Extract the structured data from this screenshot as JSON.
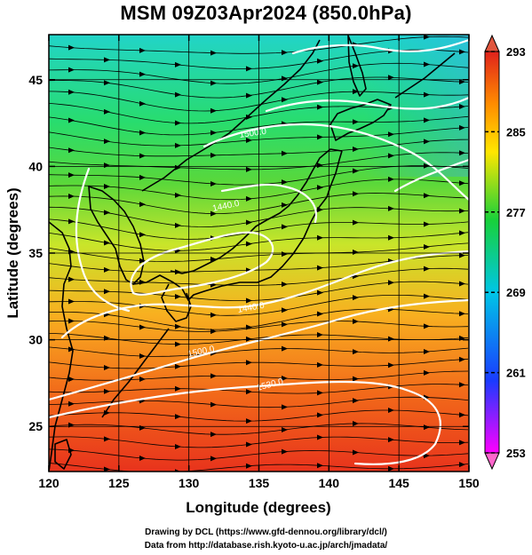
{
  "title": "MSM 09Z03Apr2024 (850.0hPa)",
  "xaxis": {
    "label": "Longitude (degrees)",
    "range": [
      120,
      150
    ],
    "ticks": [
      "120",
      "125",
      "130",
      "135",
      "140",
      "145",
      "150"
    ]
  },
  "yaxis": {
    "label": "Latitude  (degrees)",
    "range": [
      22.4,
      47.6
    ],
    "ticks": [
      "25",
      "30",
      "35",
      "40",
      "45"
    ]
  },
  "colorbar": {
    "range": [
      253,
      293
    ],
    "ticks": [
      "293",
      "285",
      "277",
      "269",
      "261",
      "253"
    ],
    "colors": [
      "#ff00ff",
      "#1a3bff",
      "#00c6e6",
      "#18d13a",
      "#ffe600",
      "#ff8c00",
      "#e0221c"
    ]
  },
  "contour_labels": [
    "1500.0",
    "1440.0",
    "1440.0",
    "1500.0",
    "1530.0"
  ],
  "footer": {
    "line1": "Drawing by DCL (https://www.gfd-dennou.org/library/dcl/)",
    "line2": "Data from http://database.rish.kyoto-u.ac.jp/arch/jmadata/"
  }
}
